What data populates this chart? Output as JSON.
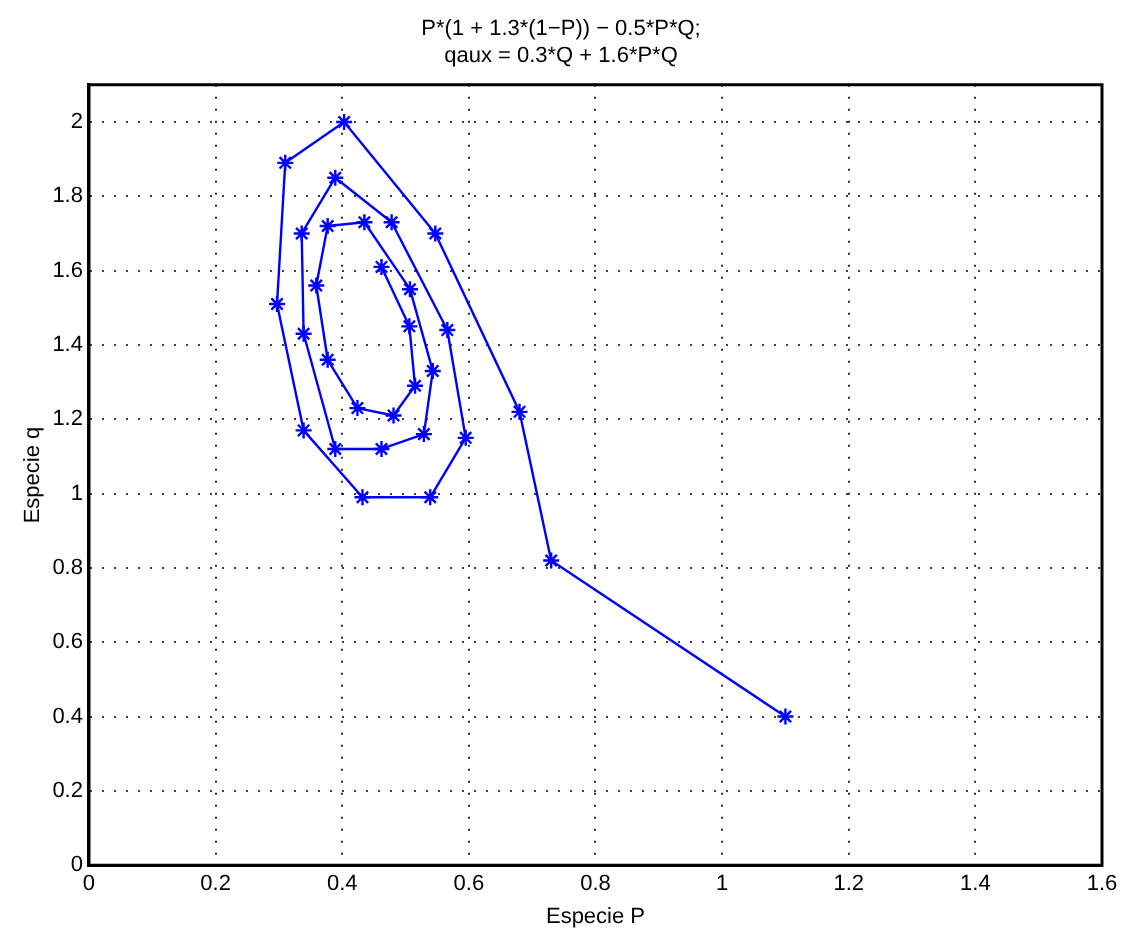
{
  "chart_data": {
    "type": "line",
    "title": [
      "P*(1 + 1.3*(1−P)) − 0.5*P*Q;",
      "qaux = 0.3*Q + 1.6*P*Q"
    ],
    "xlabel": "Especie P",
    "ylabel": "Especie q",
    "x": [
      1.1,
      0.73,
      0.68,
      0.547,
      0.403,
      0.31,
      0.297,
      0.339,
      0.432,
      0.539,
      0.595,
      0.566,
      0.478,
      0.389,
      0.336,
      0.339,
      0.389,
      0.462,
      0.529,
      0.543,
      0.507,
      0.435,
      0.377,
      0.359,
      0.377,
      0.424,
      0.481,
      0.515,
      0.506,
      0.462
    ],
    "series": [
      {
        "color": "#0000ff",
        "values": [
          0.4,
          0.82,
          1.22,
          1.7,
          2.0,
          1.89,
          1.51,
          1.17,
          0.99,
          0.99,
          1.15,
          1.44,
          1.73,
          1.85,
          1.7,
          1.43,
          1.12,
          1.12,
          1.16,
          1.33,
          1.55,
          1.73,
          1.72,
          1.56,
          1.36,
          1.23,
          1.21,
          1.29,
          1.45,
          1.61
        ]
      }
    ],
    "xlim": [
      0,
      1.6
    ],
    "xticks": [
      0,
      0.2,
      0.4,
      0.6,
      0.8,
      1,
      1.2,
      1.4,
      1.6
    ],
    "ylim": [
      0,
      2.1
    ],
    "yticks": [
      0,
      0.2,
      0.4,
      0.6,
      0.8,
      1,
      1.2,
      1.4,
      1.6,
      1.8,
      2
    ],
    "grid": true,
    "legend": false,
    "marker": "cross",
    "line_style": "solid"
  }
}
